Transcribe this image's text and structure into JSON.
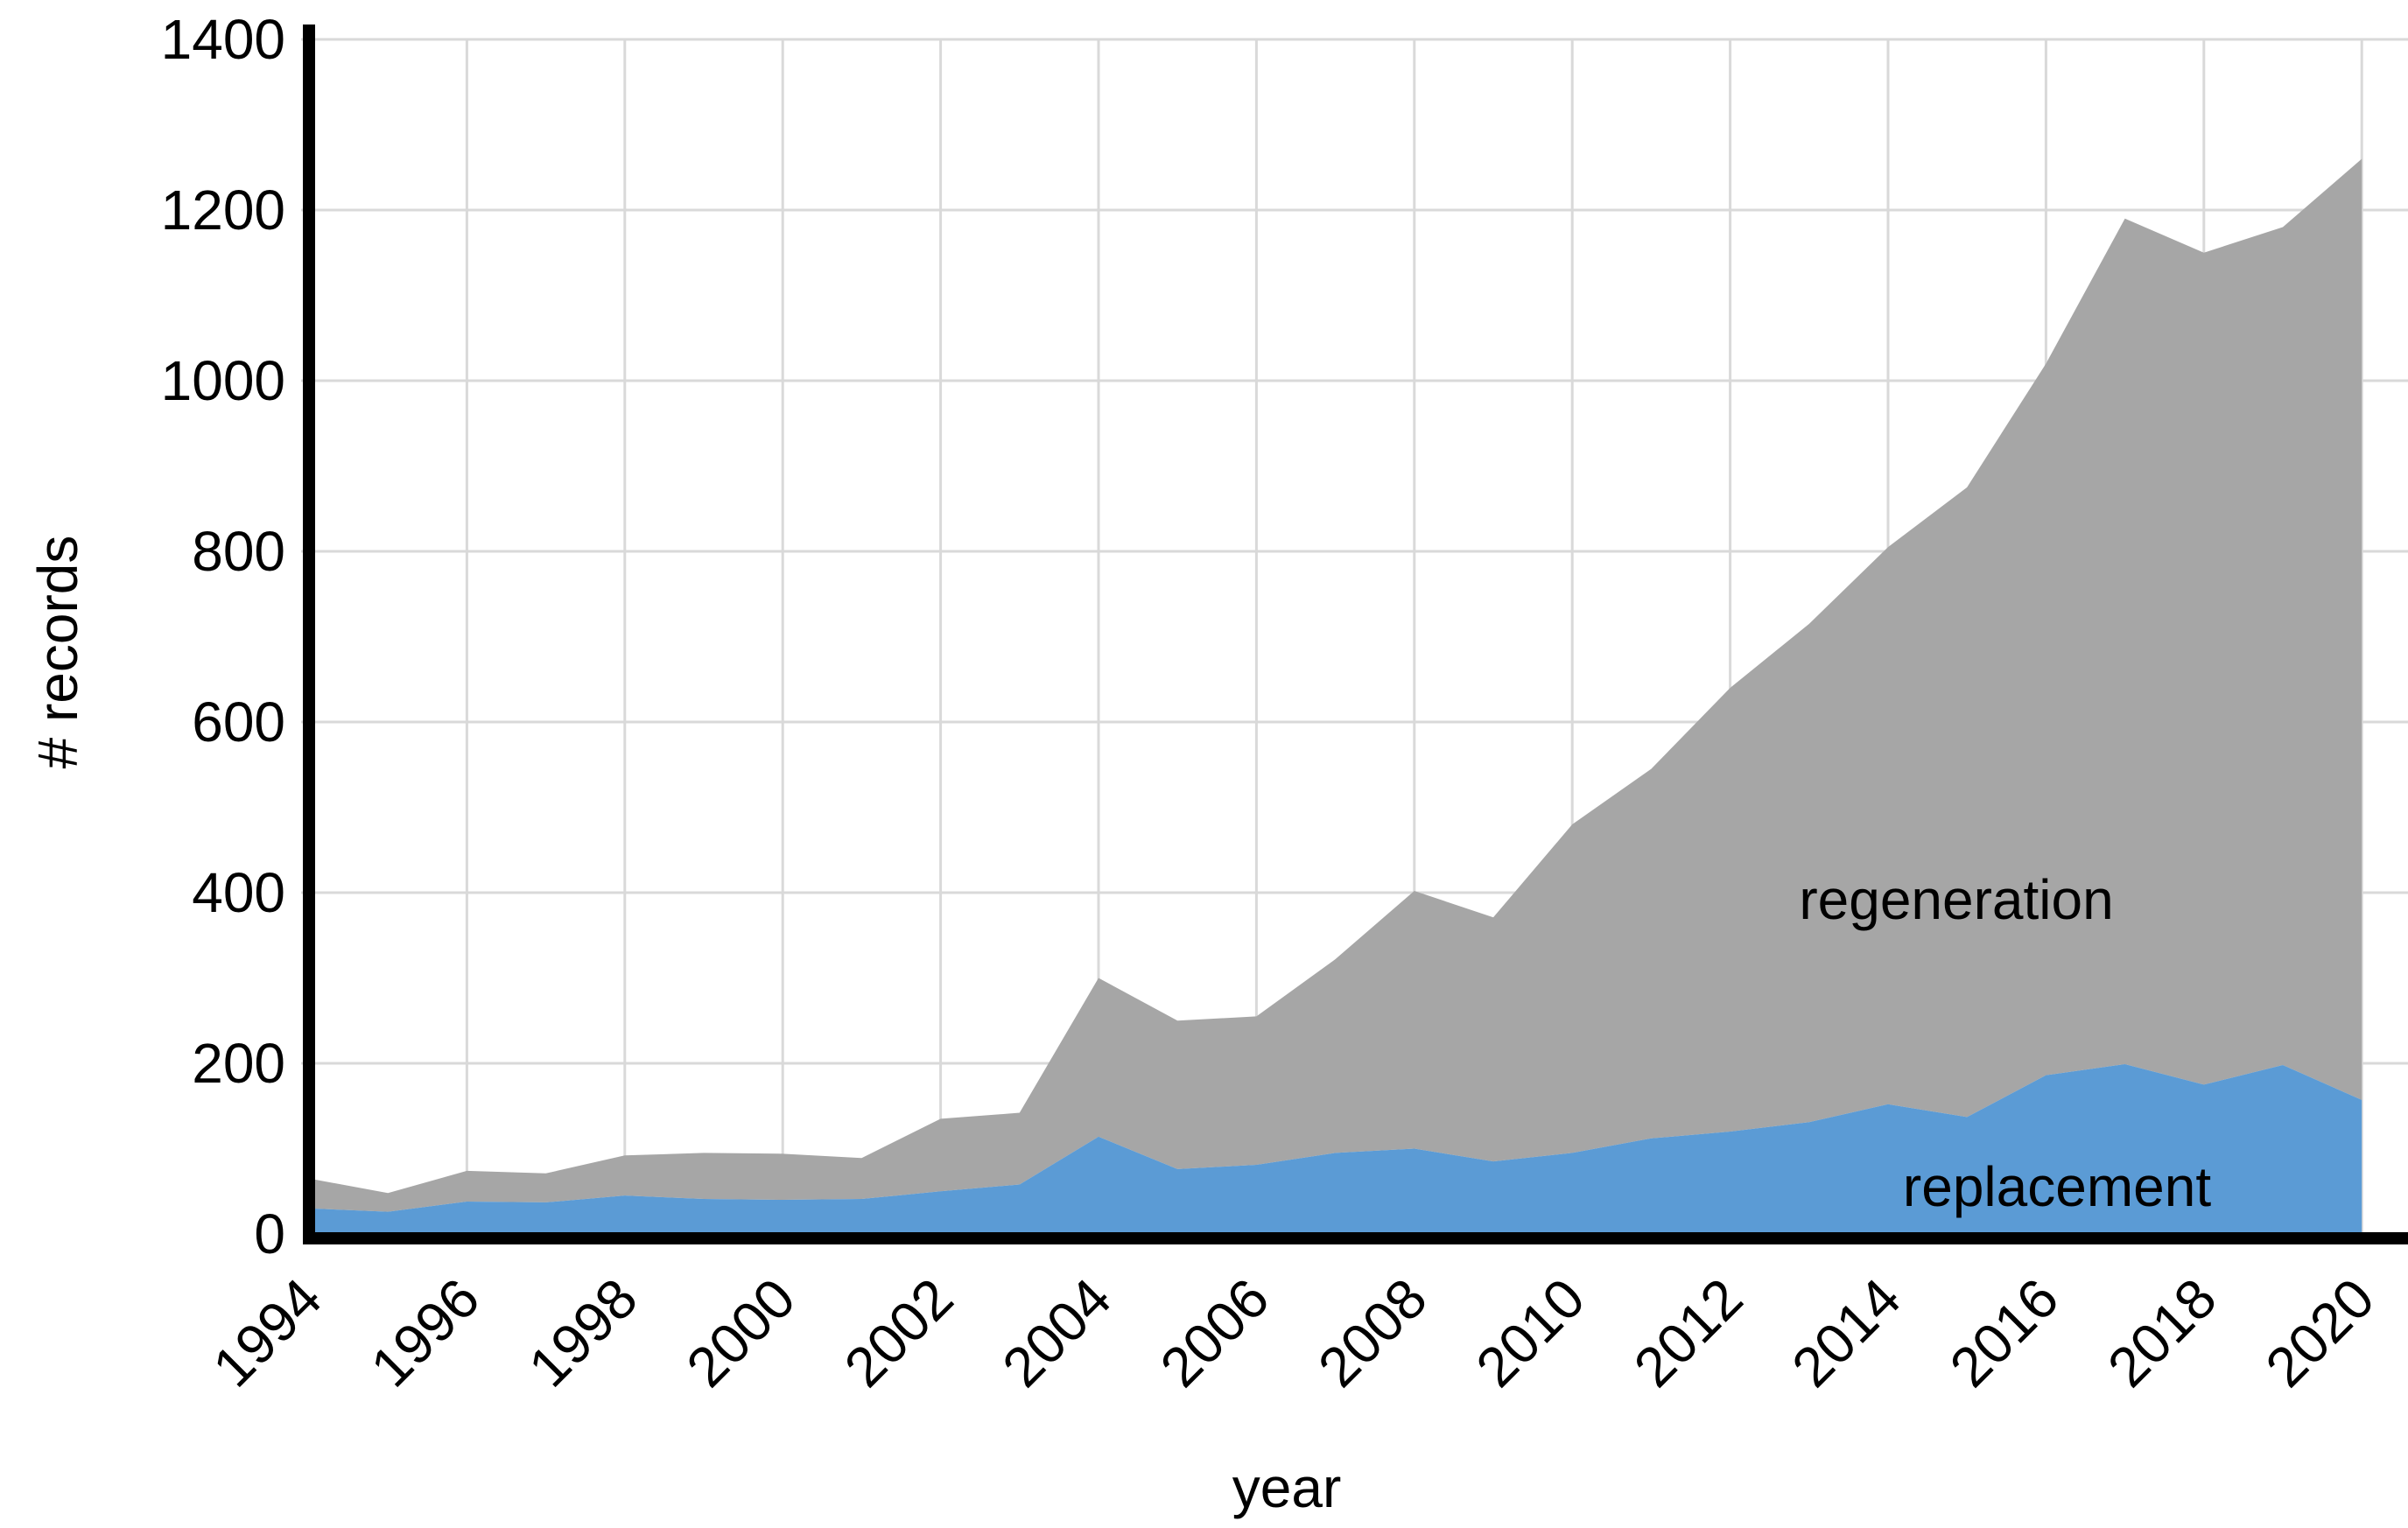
{
  "chart_data": {
    "type": "area",
    "stacked": true,
    "title": "",
    "xlabel": "year",
    "ylabel": "# records",
    "x": [
      1994,
      1995,
      1996,
      1997,
      1998,
      1999,
      2000,
      2001,
      2002,
      2003,
      2004,
      2005,
      2006,
      2007,
      2008,
      2009,
      2010,
      2011,
      2012,
      2013,
      2014,
      2015,
      2016,
      2017,
      2018,
      2019,
      2020
    ],
    "series": [
      {
        "name": "replacement",
        "color": "#5B9BD5",
        "values": [
          30,
          26,
          38,
          37,
          45,
          41,
          40,
          41,
          50,
          58,
          114,
          76,
          81,
          95,
          100,
          85,
          95,
          112,
          120,
          131,
          152,
          137,
          186,
          199,
          175,
          198,
          157
        ]
      },
      {
        "name": "regeneration",
        "color": "#A6A6A6",
        "values": [
          35,
          22,
          36,
          34,
          47,
          54,
          54,
          48,
          85,
          84,
          186,
          174,
          174,
          227,
          302,
          286,
          385,
          433,
          520,
          584,
          653,
          738,
          834,
          991,
          975,
          982,
          1103
        ]
      }
    ],
    "stacked_totals": [
      65,
      48,
      74,
      71,
      92,
      95,
      94,
      89,
      135,
      142,
      300,
      250,
      255,
      322,
      402,
      371,
      480,
      545,
      640,
      715,
      805,
      875,
      1020,
      1190,
      1150,
      1180,
      1260
    ],
    "ylim": [
      0,
      1400
    ],
    "ytick_step": 200,
    "yticks": [
      "0",
      "200",
      "400",
      "600",
      "800",
      "1000",
      "1200",
      "1400"
    ],
    "xticks": [
      "1994",
      "1996",
      "1998",
      "2000",
      "2002",
      "2004",
      "2006",
      "2008",
      "2010",
      "2012",
      "2014",
      "2016",
      "2018",
      "2020"
    ],
    "grid": true,
    "gridline_color": "#D9D9D9",
    "axis_color": "#000000",
    "text_color": "#000000",
    "legend_position": "in-plot annotations",
    "annotations": {
      "regeneration_label": "regeneration",
      "replacement_label": "replacement"
    }
  }
}
